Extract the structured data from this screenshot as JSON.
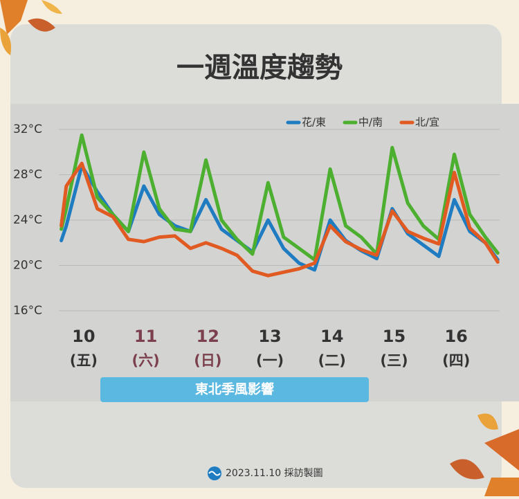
{
  "chart_data": {
    "type": "line",
    "title": "一週溫度趨勢",
    "x": [
      10.14,
      10.22,
      10.47,
      10.72,
      10.97,
      11.22,
      11.47,
      11.72,
      11.97,
      12.22,
      12.47,
      12.72,
      12.97,
      13.22,
      13.47,
      13.72,
      13.97,
      14.22,
      14.47,
      14.72,
      14.97,
      15.22,
      15.47,
      15.72,
      15.97,
      16.22,
      16.47,
      16.72,
      16.97,
      17.17
    ],
    "xlim": [
      10.1,
      17.2
    ],
    "xticks": [
      {
        "value": 10.5,
        "label": "10"
      },
      {
        "value": 11.5,
        "label": "11"
      },
      {
        "value": 12.5,
        "label": "12"
      },
      {
        "value": 13.5,
        "label": "13"
      },
      {
        "value": 14.5,
        "label": "14"
      },
      {
        "value": 15.5,
        "label": "15"
      },
      {
        "value": 16.5,
        "label": "16"
      }
    ],
    "xtick_sublabels": [
      "(五)",
      "(六)",
      "(日)",
      "(一)",
      "(二)",
      "(三)",
      "(四)"
    ],
    "xtick_colors": [
      "#333333",
      "#7b3f4e",
      "#7b3f4e",
      "#333333",
      "#333333",
      "#333333",
      "#333333"
    ],
    "ylim": [
      16,
      32
    ],
    "yticks": [
      {
        "value": 32,
        "label": "32°C"
      },
      {
        "value": 28,
        "label": "28°C"
      },
      {
        "value": 24,
        "label": "24°C"
      },
      {
        "value": 20,
        "label": "20°C"
      },
      {
        "value": 16,
        "label": "16°C"
      }
    ],
    "grid": true,
    "legend": "top-right",
    "series": [
      {
        "name": "花/東",
        "color": "#1f7cc1",
        "values": [
          22.2,
          23.5,
          28.8,
          26.5,
          24.5,
          23,
          27,
          24.5,
          23.5,
          23,
          25.8,
          23.2,
          22.2,
          21.2,
          24,
          21.5,
          20.2,
          19.6,
          24,
          22.2,
          21.3,
          20.6,
          25,
          22.8,
          21.8,
          20.8,
          25.8,
          23,
          22,
          20.5
        ]
      },
      {
        "name": "中/南",
        "color": "#4caf2f",
        "values": [
          23.2,
          25,
          31.5,
          26,
          24.5,
          23,
          30,
          25,
          23.2,
          23,
          29.3,
          24,
          22.3,
          21,
          27.3,
          22.5,
          21.5,
          20.5,
          28.5,
          23.5,
          22.5,
          21,
          30.4,
          25.5,
          23.5,
          22.3,
          29.8,
          24.5,
          22.5,
          21.1
        ]
      },
      {
        "name": "北/宜",
        "color": "#e05a22",
        "values": [
          23.5,
          27,
          29,
          25,
          24.3,
          22.3,
          22.1,
          22.5,
          22.6,
          21.5,
          22,
          21.5,
          20.9,
          19.5,
          19.1,
          19.4,
          19.7,
          20.2,
          23.5,
          22.1,
          21.4,
          20.9,
          24.8,
          23,
          22.4,
          21.9,
          28.2,
          23.3,
          22,
          20.3
        ]
      }
    ],
    "annotation": "東北季風影響",
    "source": "2023.11.10 採訪製圖"
  }
}
